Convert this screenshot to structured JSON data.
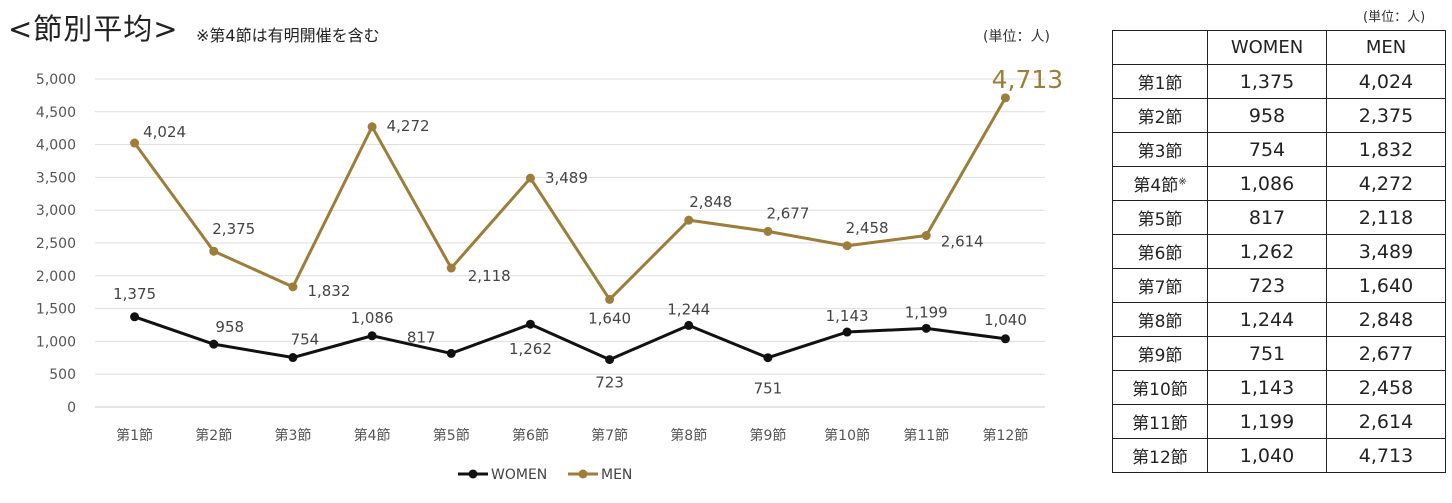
{
  "title": "<節別平均>",
  "note": "※第4節は有明開催を含む",
  "chart_unit": "(単位：人)",
  "table_unit": "(単位：人)",
  "colors": {
    "women": "#111111",
    "men": "#9c7d3a",
    "grid": "#dddddd"
  },
  "chart_data": {
    "type": "line",
    "categories": [
      "第1節",
      "第2節",
      "第3節",
      "第4節",
      "第5節",
      "第6節",
      "第7節",
      "第8節",
      "第9節",
      "第10節",
      "第11節",
      "第12節"
    ],
    "series": [
      {
        "name": "WOMEN",
        "values": [
          1375,
          958,
          754,
          1086,
          817,
          1262,
          723,
          1244,
          751,
          1143,
          1199,
          1040
        ],
        "labels": [
          "1,375",
          "958",
          "754",
          "1,086",
          "817",
          "1,262",
          "723",
          "1,244",
          "751",
          "1,143",
          "1,199",
          "1,040"
        ]
      },
      {
        "name": "MEN",
        "values": [
          4024,
          2375,
          1832,
          4272,
          2118,
          3489,
          1640,
          2848,
          2677,
          2458,
          2614,
          4713
        ],
        "labels": [
          "4,024",
          "2,375",
          "1,832",
          "4,272",
          "2,118",
          "3,489",
          "1,640",
          "2,848",
          "2,677",
          "2,458",
          "2,614",
          "4,713"
        ]
      }
    ],
    "ylim": [
      0,
      5000
    ],
    "yticks": [
      0,
      500,
      1000,
      1500,
      2000,
      2500,
      3000,
      3500,
      4000,
      4500,
      5000
    ],
    "ytick_labels": [
      "0",
      "500",
      "1,000",
      "1,500",
      "2,000",
      "2,500",
      "3,000",
      "3,500",
      "4,000",
      "4,500",
      "5,000"
    ],
    "grid": true,
    "legend": "bottom"
  },
  "table": {
    "headers": [
      "",
      "WOMEN",
      "MEN"
    ],
    "rows": [
      {
        "label": "第1節",
        "mark": "",
        "women": "1,375",
        "men": "4,024"
      },
      {
        "label": "第2節",
        "mark": "",
        "women": "958",
        "men": "2,375"
      },
      {
        "label": "第3節",
        "mark": "",
        "women": "754",
        "men": "1,832"
      },
      {
        "label": "第4節",
        "mark": "※",
        "women": "1,086",
        "men": "4,272"
      },
      {
        "label": "第5節",
        "mark": "",
        "women": "817",
        "men": "2,118"
      },
      {
        "label": "第6節",
        "mark": "",
        "women": "1,262",
        "men": "3,489"
      },
      {
        "label": "第7節",
        "mark": "",
        "women": "723",
        "men": "1,640"
      },
      {
        "label": "第8節",
        "mark": "",
        "women": "1,244",
        "men": "2,848"
      },
      {
        "label": "第9節",
        "mark": "",
        "women": "751",
        "men": "2,677"
      },
      {
        "label": "第10節",
        "mark": "",
        "women": "1,143",
        "men": "2,458"
      },
      {
        "label": "第11節",
        "mark": "",
        "women": "1,199",
        "men": "2,614"
      },
      {
        "label": "第12節",
        "mark": "",
        "women": "1,040",
        "men": "4,713"
      }
    ]
  }
}
